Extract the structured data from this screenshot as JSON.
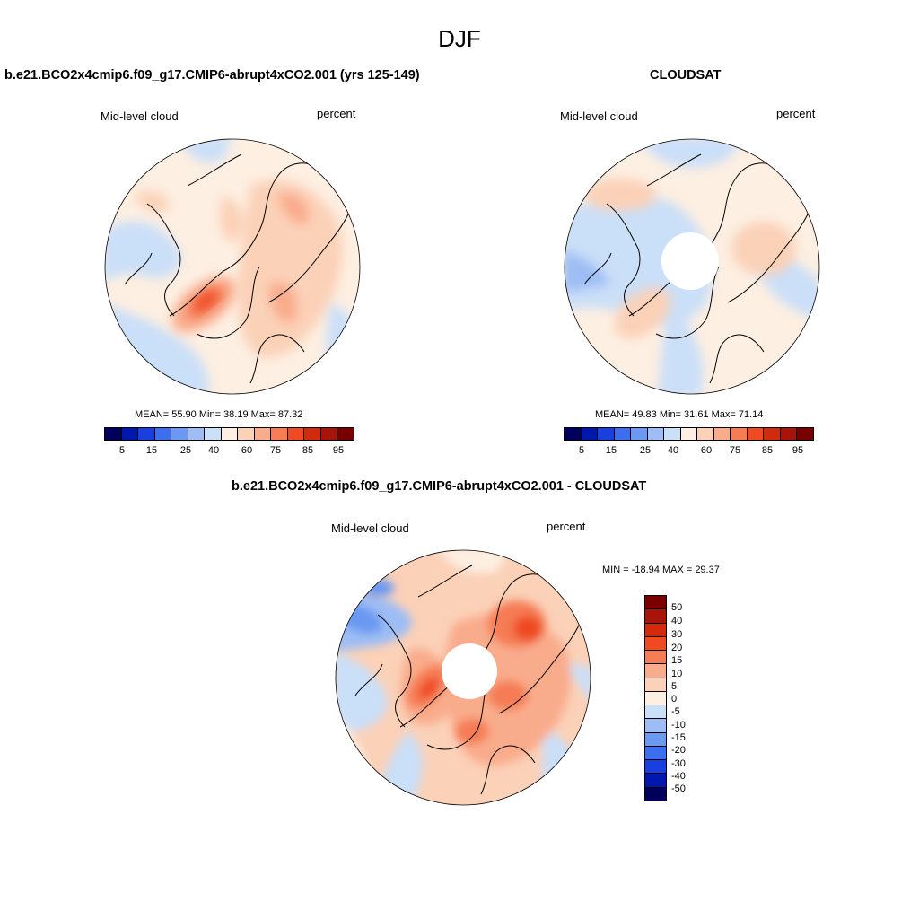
{
  "figure": {
    "title": "DJF"
  },
  "panels": [
    {
      "title": "b.e21.BCO2x4cmip6.f09_g17.CMIP6-abrupt4xCO2.001 (yrs 125-149)",
      "left_label": "Mid-level cloud",
      "right_label": "percent",
      "stats": "MEAN=  55.90  Min=  38.19  Max=  87.32",
      "colorbar_ticks": [
        "5",
        "15",
        "25",
        "40",
        "60",
        "75",
        "85",
        "95"
      ],
      "polar_hole": false
    },
    {
      "title": "CLOUDSAT",
      "left_label": "Mid-level cloud",
      "right_label": "percent",
      "stats": "MEAN=  49.83  Min=  31.61  Max=  71.14",
      "colorbar_ticks": [
        "5",
        "15",
        "25",
        "40",
        "60",
        "75",
        "85",
        "95"
      ],
      "polar_hole": true
    },
    {
      "title": "b.e21.BCO2x4cmip6.f09_g17.CMIP6-abrupt4xCO2.001 - CLOUDSAT",
      "left_label": "Mid-level cloud",
      "right_label": "percent",
      "stats": "MIN = -18.94 MAX =  29.37",
      "colorbar_ticks": [
        "50",
        "40",
        "30",
        "20",
        "15",
        "10",
        "5",
        "0",
        "-5",
        "-10",
        "-15",
        "-20",
        "-30",
        "-40",
        "-50"
      ],
      "polar_hole": true
    }
  ],
  "colorbar_colors": {
    "absolute": [
      "#00005c",
      "#0018b0",
      "#1a3fe0",
      "#3c6ef0",
      "#6a98f2",
      "#9dbdf4",
      "#cadff8",
      "#fdefe2",
      "#fbd1b8",
      "#f9ac8c",
      "#f57c55",
      "#ef4a22",
      "#d32a0c",
      "#a8140a",
      "#7a0000"
    ],
    "difference": [
      "#7a0000",
      "#a8140a",
      "#d32a0c",
      "#ef4a22",
      "#f57c55",
      "#f9ac8c",
      "#fbd1b8",
      "#fdefe2",
      "#cadff8",
      "#9dbdf4",
      "#6a98f2",
      "#3c6ef0",
      "#1a3fe0",
      "#0018b0",
      "#00005c"
    ]
  }
}
